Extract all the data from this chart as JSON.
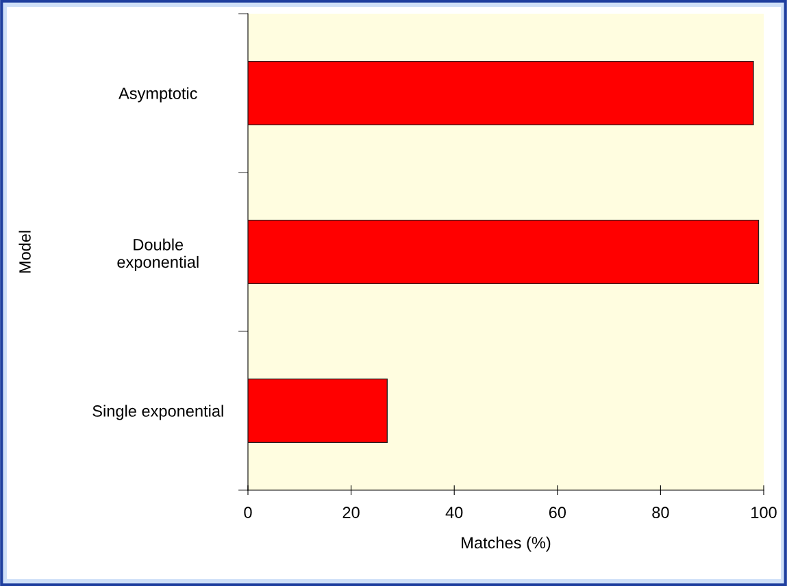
{
  "chart_data": {
    "type": "bar",
    "orientation": "horizontal",
    "xlabel": "Matches (%)",
    "ylabel": "Model",
    "categories": [
      "Asymptotic",
      "Double\nexponential",
      "Single exponential"
    ],
    "values": [
      98,
      99,
      27
    ],
    "color": "#ff0000",
    "xlim": [
      0,
      100
    ],
    "xticks": [
      0,
      20,
      40,
      60,
      80,
      100
    ],
    "grid": false,
    "legend": false
  }
}
